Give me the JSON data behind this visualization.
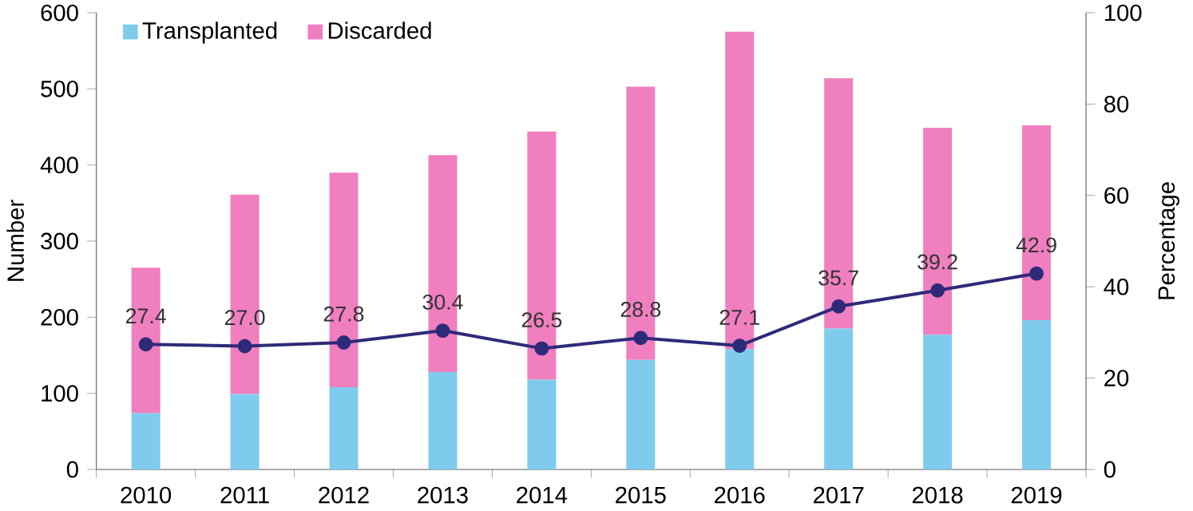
{
  "chart_data": {
    "type": "bar",
    "stacked": true,
    "legend": "top left",
    "marker": "circle",
    "categories": [
      "2010",
      "2011",
      "2012",
      "2013",
      "2014",
      "2015",
      "2016",
      "2017",
      "2018",
      "2019"
    ],
    "ylabel": "Number",
    "y2label": "Percentage",
    "ylim": [
      0,
      600
    ],
    "yticks": [
      0,
      100,
      200,
      300,
      400,
      500,
      600
    ],
    "y2lim": [
      0,
      100
    ],
    "y2ticks": [
      0,
      20,
      40,
      60,
      80,
      100
    ],
    "series": [
      {
        "name": "Transplanted",
        "color": "#7ecbee",
        "values": [
          74,
          99,
          108,
          128,
          118,
          144,
          158,
          185,
          177,
          196
        ]
      },
      {
        "name": "Discarded",
        "color": "#f07fbf",
        "values": [
          191,
          262,
          282,
          285,
          326,
          359,
          417,
          329,
          272,
          256
        ]
      },
      {
        "type": "line",
        "axis": "y2",
        "color": "#2e2a7a",
        "values": [
          27.4,
          27.0,
          27.8,
          30.4,
          26.5,
          28.8,
          27.1,
          35.7,
          39.2,
          42.9
        ],
        "value_labels": [
          "27.4",
          "27.0",
          "27.8",
          "30.4",
          "26.5",
          "28.8",
          "27.1",
          "35.7",
          "39.2",
          "42.9"
        ]
      }
    ]
  }
}
